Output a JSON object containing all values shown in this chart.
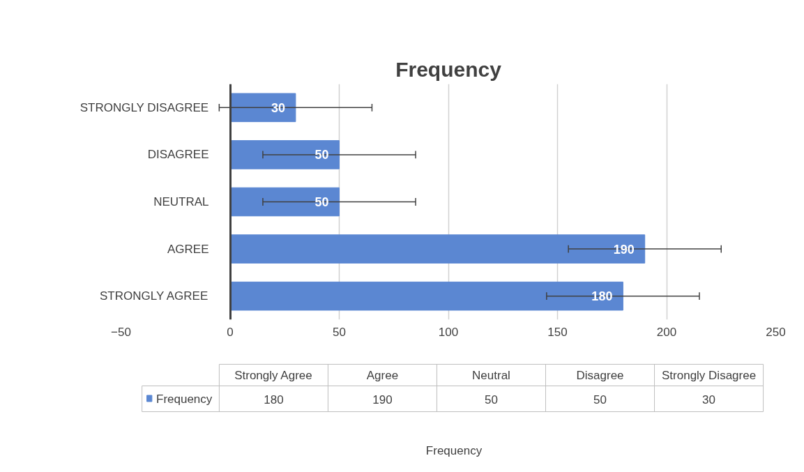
{
  "chart_data": {
    "type": "bar",
    "orientation": "horizontal",
    "title": "Frequency",
    "categories": [
      "STRONGLY DISAGREE",
      "DISAGREE",
      "NEUTRAL",
      "AGREE",
      "STRONGLY AGREE"
    ],
    "series": [
      {
        "name": "Frequency",
        "color": "#5b87d2",
        "values": [
          30,
          50,
          50,
          190,
          180
        ],
        "value_labels": [
          "30",
          "50",
          "50",
          "190",
          "180"
        ],
        "errors": [
          35,
          35,
          35,
          35,
          35
        ]
      }
    ],
    "xlim": [
      -50,
      250
    ],
    "xticks": [
      -50,
      0,
      50,
      100,
      150,
      200,
      250
    ],
    "grid": "x",
    "legend": "bottom",
    "annotations": [
      "Strongly Disagree",
      "Disagree",
      "Neutral",
      "Agree",
      "Strongly Agree"
    ]
  }
}
